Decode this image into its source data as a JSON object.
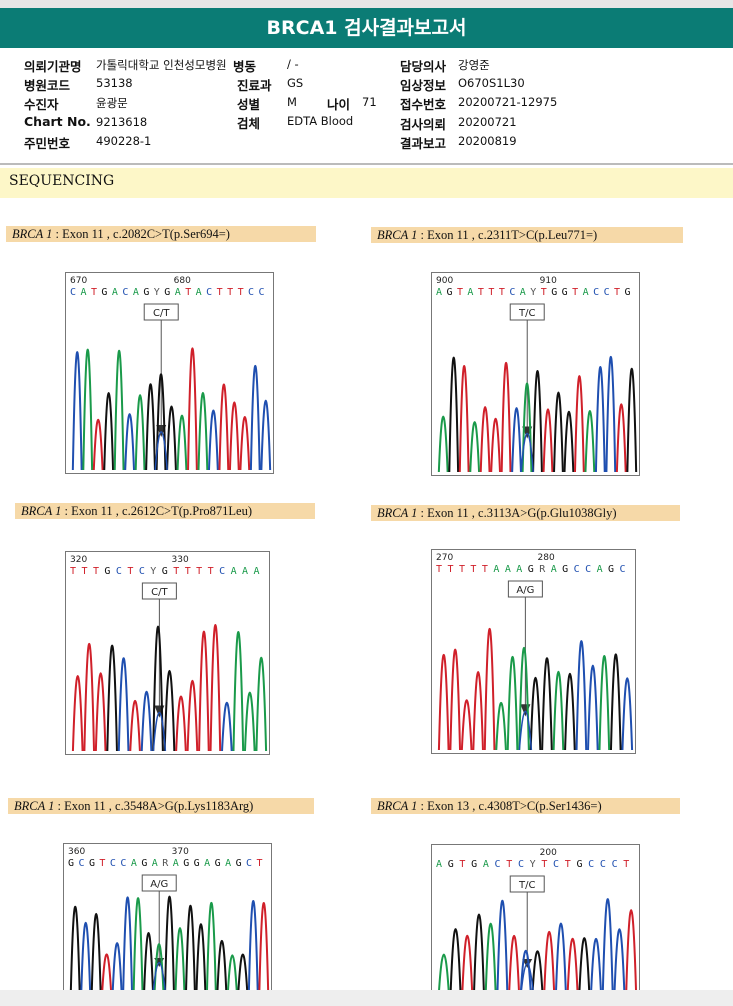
{
  "title": "BRCA1 검사결과보고서",
  "info": {
    "institution_label": "의뢰기관명",
    "institution": "가톨릭대학교 인천성모병원",
    "ward_label": "병동",
    "ward": "/ -",
    "doctor_label": "담당의사",
    "doctor": "강영준",
    "hospital_code_label": "병원코드",
    "hospital_code": "53138",
    "dept_label": "진료과",
    "dept": "GS",
    "clinical_label": "임상정보",
    "clinical": "O670S1L30",
    "patient_label": "수진자",
    "patient": "윤광문",
    "sex_label": "성별",
    "sex": "M",
    "age_label": "나이",
    "age": "71",
    "receipt_label": "접수번호",
    "receipt": "20200721-12975",
    "chart_label": "Chart No.",
    "chart": "9213618",
    "specimen_label": "검체",
    "specimen": "EDTA Blood",
    "request_label": "검사의뢰",
    "request": "20200721",
    "rrn_label": "주민번호",
    "rrn": "490228-1",
    "report_label": "결과보고",
    "report": "20200819"
  },
  "section": "SEQUENCING",
  "variants": [
    {
      "gene": "BRCA 1",
      "detail": " : Exon 11 , c.2082C>T(p.Ser694=)",
      "pos1": "670",
      "pos2": "680",
      "seq": "C A T G A C A G Y G A T A C T T T C C",
      "call": "C/T"
    },
    {
      "gene": "BRCA 1",
      "detail": " : Exon 11 , c.2311T>C(p.Leu771=)",
      "pos1": "900",
      "pos2": "910",
      "seq": "A G T A T T T C A Y T G G T A C C T G",
      "call": "T/C"
    },
    {
      "gene": "BRCA 1",
      "detail": " : Exon 11 , c.2612C>T(p.Pro871Leu)",
      "pos1": "320",
      "pos2": "330",
      "seq": "T T T G C T C Y G T T T T C A A A",
      "call": "C/T"
    },
    {
      "gene": "BRCA 1",
      "detail": " : Exon 11 , c.3113A>G(p.Glu1038Gly)",
      "pos1": "270",
      "pos2": "280",
      "seq": "T T T T T A A A G R A G C C A G C",
      "call": "A/G"
    },
    {
      "gene": "BRCA 1",
      "detail": " : Exon 11 , c.3548A>G(p.Lys1183Arg)",
      "pos1": "360",
      "pos2": "370",
      "seq": "G C G T C C A G A R A G G A G A G C T",
      "call": "A/G"
    },
    {
      "gene": "BRCA 1",
      "detail": " : Exon 13 , c.4308T>C(p.Ser1436=)",
      "pos1": "",
      "pos2": "200",
      "seq": "A G T G A C T C Y T C T G C C C T",
      "call": "T/C"
    }
  ],
  "colors": {
    "A": "#1a9a4a",
    "C": "#1f4fb0",
    "G": "#111111",
    "T": "#d0202a",
    "header": "#0b7c75"
  }
}
